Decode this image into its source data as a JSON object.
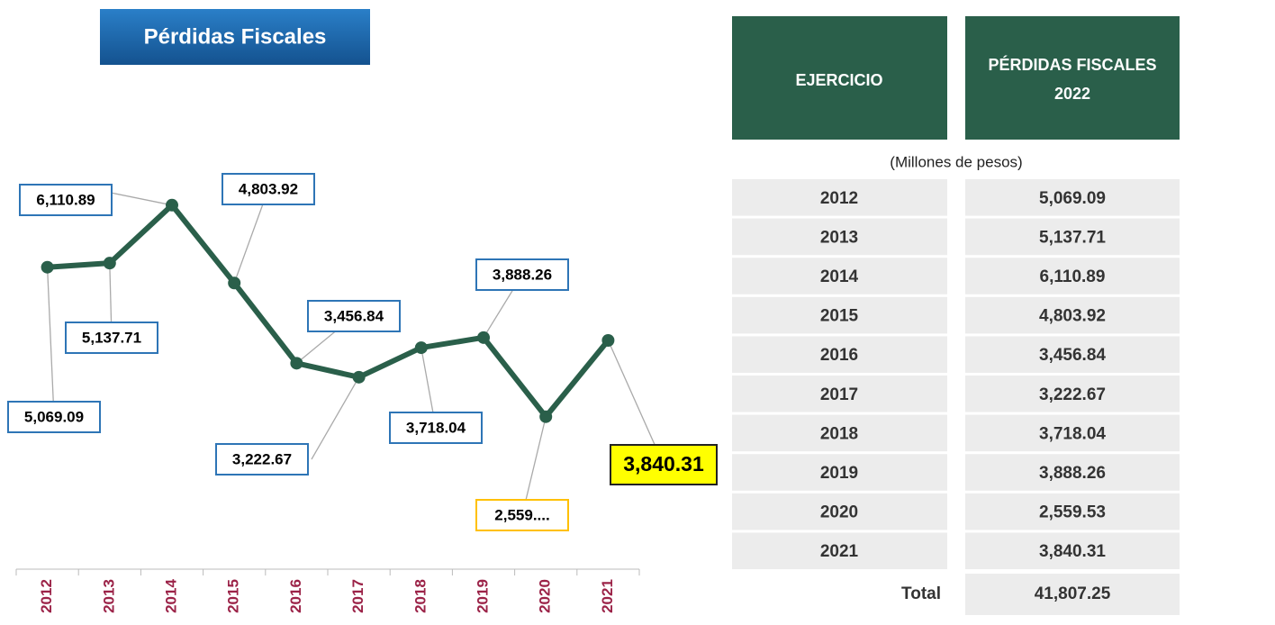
{
  "chart_data": {
    "type": "line",
    "title": "Pérdidas Fiscales",
    "categories": [
      "2012",
      "2013",
      "2014",
      "2015",
      "2016",
      "2017",
      "2018",
      "2019",
      "2020",
      "2021"
    ],
    "values": [
      5069.09,
      5137.71,
      6110.89,
      4803.92,
      3456.84,
      3222.67,
      3718.04,
      3888.26,
      2559.53,
      3840.31
    ],
    "value_labels": [
      "5,069.09",
      "5,137.71",
      "6,110.89",
      "4,803.92",
      "3,456.84",
      "3,222.67",
      "3,718.04",
      "3,888.26",
      "2,559....",
      "3,840.31"
    ],
    "color": "#2a5f4a",
    "ylim": [
      0,
      7000
    ]
  },
  "table": {
    "header": [
      "EJERCICIO",
      "PÉRDIDAS FISCALES",
      "2022"
    ],
    "subtitle": "(Millones de pesos)",
    "rows": [
      [
        "2012",
        "5,069.09"
      ],
      [
        "2013",
        "5,137.71"
      ],
      [
        "2014",
        "6,110.89"
      ],
      [
        "2015",
        "4,803.92"
      ],
      [
        "2016",
        "3,456.84"
      ],
      [
        "2017",
        "3,222.67"
      ],
      [
        "2018",
        "3,718.04"
      ],
      [
        "2019",
        "3,888.26"
      ],
      [
        "2020",
        "2,559.53"
      ],
      [
        "2021",
        "3,840.31"
      ]
    ],
    "total": [
      "Total",
      "41,807.25"
    ]
  }
}
